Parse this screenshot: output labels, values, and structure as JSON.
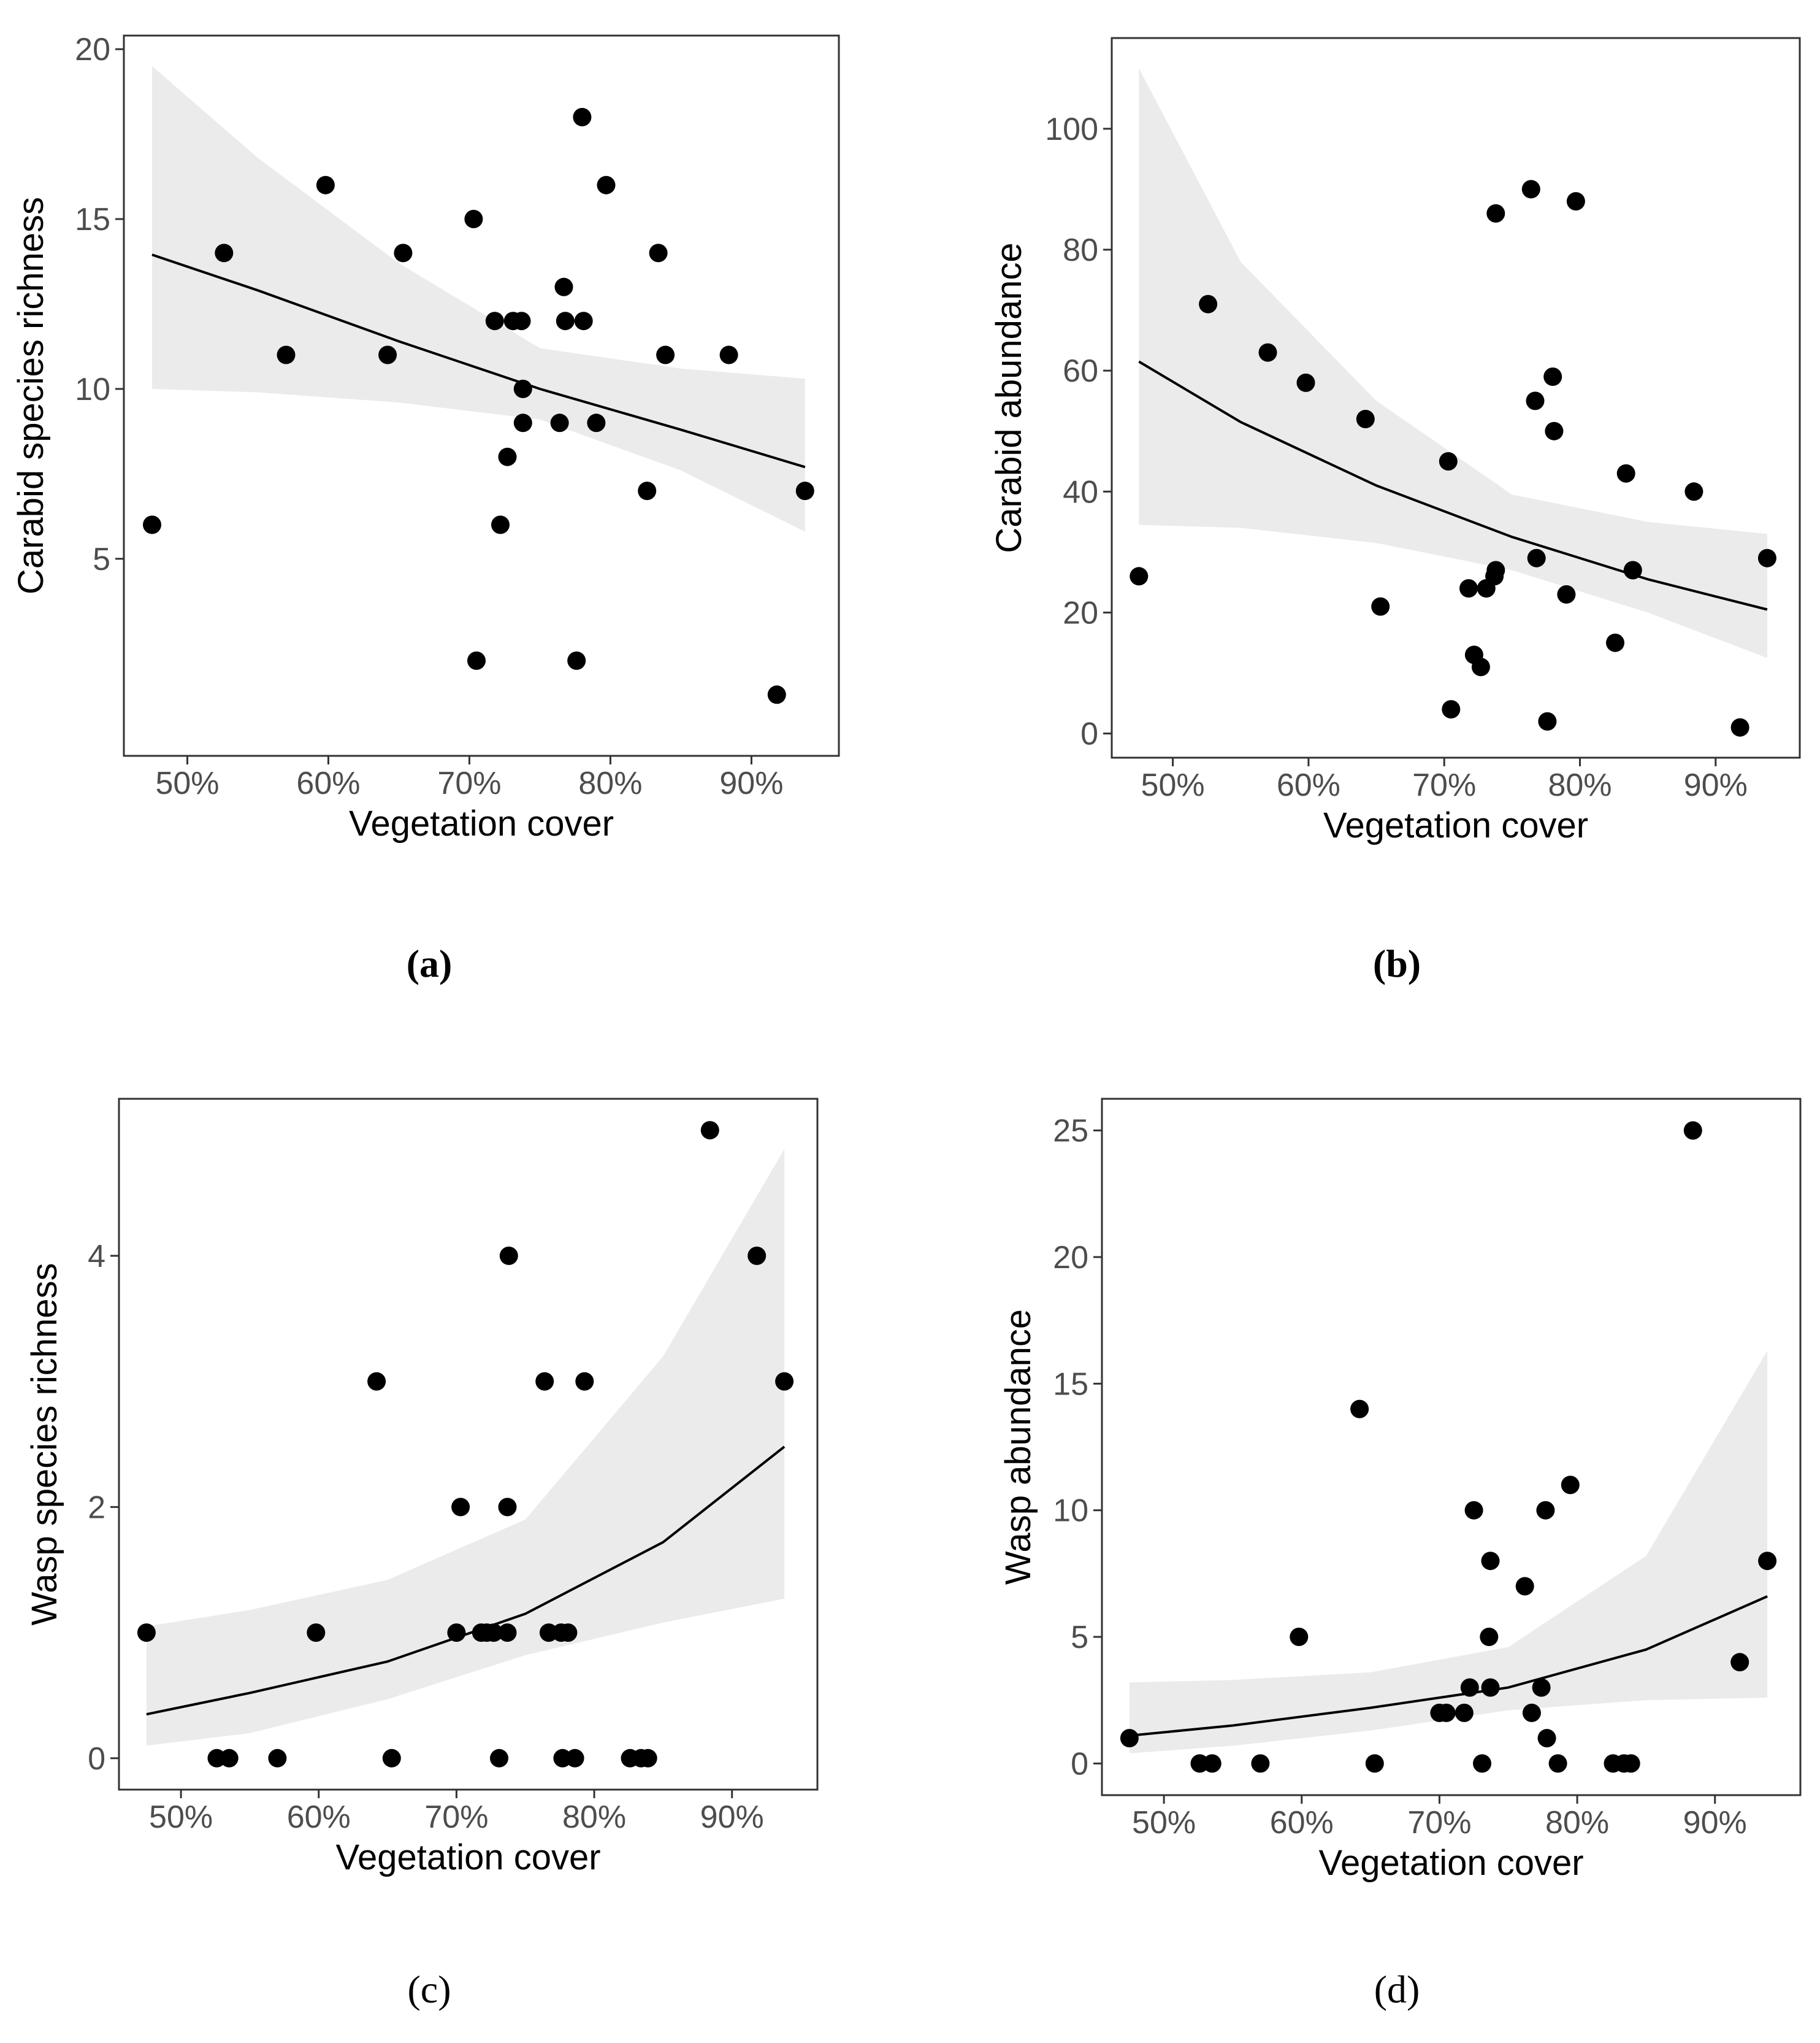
{
  "chart_data": [
    {
      "id": "a",
      "type": "scatter",
      "caption": "(a)",
      "xlabel": "Vegetation cover",
      "ylabel": "Carabid species richness",
      "xlim": [
        0.455,
        0.962
      ],
      "ylim": [
        -0.8,
        20.4
      ],
      "xticks": [
        0.5,
        0.6,
        0.7,
        0.8,
        0.9
      ],
      "xtick_labels": [
        "50%",
        "60%",
        "70%",
        "80%",
        "90%"
      ],
      "yticks": [
        5,
        10,
        15,
        20
      ],
      "ytick_labels": [
        "5",
        "10",
        "15",
        "20"
      ],
      "points": [
        [
          0.475,
          6
        ],
        [
          0.526,
          14
        ],
        [
          0.57,
          11
        ],
        [
          0.598,
          16
        ],
        [
          0.642,
          11
        ],
        [
          0.653,
          14
        ],
        [
          0.703,
          15
        ],
        [
          0.705,
          2
        ],
        [
          0.718,
          12
        ],
        [
          0.722,
          6
        ],
        [
          0.727,
          8
        ],
        [
          0.731,
          12
        ],
        [
          0.737,
          12
        ],
        [
          0.738,
          10
        ],
        [
          0.738,
          9
        ],
        [
          0.764,
          9
        ],
        [
          0.767,
          13
        ],
        [
          0.768,
          12
        ],
        [
          0.776,
          2
        ],
        [
          0.78,
          18
        ],
        [
          0.781,
          12
        ],
        [
          0.79,
          9
        ],
        [
          0.797,
          16
        ],
        [
          0.826,
          7
        ],
        [
          0.834,
          14
        ],
        [
          0.839,
          11
        ],
        [
          0.884,
          11
        ],
        [
          0.918,
          1
        ],
        [
          0.938,
          7
        ]
      ],
      "fit": {
        "x": [
          0.475,
          0.55,
          0.65,
          0.75,
          0.85,
          0.938
        ],
        "y": [
          13.95,
          12.9,
          11.4,
          10.0,
          8.8,
          7.7
        ]
      },
      "ci": {
        "x": [
          0.475,
          0.55,
          0.65,
          0.75,
          0.85,
          0.938
        ],
        "lower": [
          10.0,
          9.9,
          9.6,
          9.1,
          7.6,
          5.8
        ],
        "upper": [
          19.5,
          16.8,
          13.7,
          11.2,
          10.6,
          10.3
        ]
      }
    },
    {
      "id": "b",
      "type": "scatter",
      "caption": "(b)",
      "xlabel": "Vegetation cover",
      "ylabel": "Carabid abundance",
      "xlim": [
        0.455,
        0.962
      ],
      "ylim": [
        -4,
        115
      ],
      "xticks": [
        0.5,
        0.6,
        0.7,
        0.8,
        0.9
      ],
      "xtick_labels": [
        "50%",
        "60%",
        "70%",
        "80%",
        "90%"
      ],
      "yticks": [
        0,
        20,
        40,
        60,
        80,
        100
      ],
      "ytick_labels": [
        "0",
        "20",
        "40",
        "60",
        "80",
        "100"
      ],
      "points": [
        [
          0.475,
          26
        ],
        [
          0.526,
          71
        ],
        [
          0.57,
          63
        ],
        [
          0.598,
          58
        ],
        [
          0.642,
          52
        ],
        [
          0.653,
          21
        ],
        [
          0.703,
          45
        ],
        [
          0.705,
          4
        ],
        [
          0.718,
          24
        ],
        [
          0.722,
          13
        ],
        [
          0.727,
          11
        ],
        [
          0.731,
          24
        ],
        [
          0.737,
          26
        ],
        [
          0.738,
          27
        ],
        [
          0.738,
          86
        ],
        [
          0.764,
          90
        ],
        [
          0.767,
          55
        ],
        [
          0.768,
          29
        ],
        [
          0.776,
          2
        ],
        [
          0.78,
          59
        ],
        [
          0.781,
          50
        ],
        [
          0.79,
          23
        ],
        [
          0.797,
          88
        ],
        [
          0.826,
          15
        ],
        [
          0.834,
          43
        ],
        [
          0.839,
          27
        ],
        [
          0.884,
          40
        ],
        [
          0.918,
          1
        ],
        [
          0.938,
          29
        ]
      ],
      "fit": {
        "x": [
          0.475,
          0.55,
          0.65,
          0.75,
          0.85,
          0.938
        ],
        "y": [
          61.5,
          51.5,
          41.0,
          32.5,
          25.5,
          20.5
        ]
      },
      "ci": {
        "x": [
          0.475,
          0.55,
          0.65,
          0.75,
          0.85,
          0.938
        ],
        "lower": [
          34.5,
          34.0,
          31.5,
          27.0,
          20.0,
          12.5
        ],
        "upper": [
          110,
          78,
          55,
          39.5,
          35,
          33
        ]
      }
    },
    {
      "id": "c",
      "type": "scatter",
      "caption": "(c)",
      "xlabel": "Vegetation cover",
      "ylabel": "Wasp species richness",
      "xlim": [
        0.455,
        0.962
      ],
      "ylim": [
        -0.25,
        5.25
      ],
      "xticks": [
        0.5,
        0.6,
        0.7,
        0.8,
        0.9
      ],
      "xtick_labels": [
        "50%",
        "60%",
        "70%",
        "80%",
        "90%"
      ],
      "yticks": [
        0,
        2,
        4
      ],
      "ytick_labels": [
        "0",
        "2",
        "4"
      ],
      "points": [
        [
          0.475,
          1
        ],
        [
          0.526,
          0
        ],
        [
          0.535,
          0
        ],
        [
          0.57,
          0
        ],
        [
          0.598,
          1
        ],
        [
          0.642,
          3
        ],
        [
          0.653,
          0
        ],
        [
          0.7,
          1
        ],
        [
          0.703,
          2
        ],
        [
          0.718,
          1
        ],
        [
          0.722,
          1
        ],
        [
          0.727,
          1
        ],
        [
          0.731,
          0
        ],
        [
          0.737,
          2
        ],
        [
          0.737,
          1
        ],
        [
          0.738,
          4
        ],
        [
          0.764,
          3
        ],
        [
          0.767,
          1
        ],
        [
          0.776,
          1
        ],
        [
          0.777,
          0
        ],
        [
          0.781,
          1
        ],
        [
          0.786,
          0
        ],
        [
          0.793,
          3
        ],
        [
          0.826,
          0
        ],
        [
          0.834,
          0
        ],
        [
          0.839,
          0
        ],
        [
          0.884,
          5
        ],
        [
          0.918,
          4
        ],
        [
          0.938,
          3
        ]
      ],
      "fit": {
        "x": [
          0.475,
          0.55,
          0.65,
          0.75,
          0.85,
          0.938
        ],
        "y": [
          0.35,
          0.52,
          0.77,
          1.15,
          1.72,
          2.48
        ]
      },
      "ci": {
        "x": [
          0.475,
          0.55,
          0.65,
          0.75,
          0.85,
          0.938
        ],
        "lower": [
          0.1,
          0.2,
          0.47,
          0.82,
          1.08,
          1.27
        ],
        "upper": [
          1.05,
          1.18,
          1.42,
          1.9,
          3.2,
          4.85
        ]
      }
    },
    {
      "id": "d",
      "type": "scatter",
      "caption": "(d)",
      "xlabel": "Vegetation cover",
      "ylabel": "Wasp abundance",
      "xlim": [
        0.455,
        0.962
      ],
      "ylim": [
        -1.25,
        26.25
      ],
      "xticks": [
        0.5,
        0.6,
        0.7,
        0.8,
        0.9
      ],
      "xtick_labels": [
        "50%",
        "60%",
        "70%",
        "80%",
        "90%"
      ],
      "yticks": [
        0,
        5,
        10,
        15,
        20,
        25
      ],
      "ytick_labels": [
        "0",
        "5",
        "10",
        "15",
        "20",
        "25"
      ],
      "points": [
        [
          0.475,
          1
        ],
        [
          0.526,
          0
        ],
        [
          0.535,
          0
        ],
        [
          0.57,
          0
        ],
        [
          0.598,
          5
        ],
        [
          0.642,
          14
        ],
        [
          0.653,
          0
        ],
        [
          0.7,
          2
        ],
        [
          0.705,
          2
        ],
        [
          0.718,
          2
        ],
        [
          0.722,
          3
        ],
        [
          0.725,
          10
        ],
        [
          0.731,
          0
        ],
        [
          0.736,
          5
        ],
        [
          0.737,
          8
        ],
        [
          0.737,
          3
        ],
        [
          0.762,
          7
        ],
        [
          0.767,
          2
        ],
        [
          0.774,
          3
        ],
        [
          0.777,
          10
        ],
        [
          0.778,
          1
        ],
        [
          0.786,
          0
        ],
        [
          0.795,
          11
        ],
        [
          0.826,
          0
        ],
        [
          0.834,
          0
        ],
        [
          0.839,
          0
        ],
        [
          0.884,
          25
        ],
        [
          0.918,
          4
        ],
        [
          0.938,
          8
        ]
      ],
      "fit": {
        "x": [
          0.475,
          0.55,
          0.65,
          0.75,
          0.85,
          0.938
        ],
        "y": [
          1.1,
          1.5,
          2.2,
          3.0,
          4.5,
          6.6
        ]
      },
      "ci": {
        "x": [
          0.475,
          0.55,
          0.65,
          0.75,
          0.85,
          0.938
        ],
        "lower": [
          0.4,
          0.7,
          1.3,
          2.1,
          2.5,
          2.6
        ],
        "upper": [
          3.2,
          3.3,
          3.6,
          4.6,
          8.2,
          16.3
        ]
      }
    }
  ]
}
